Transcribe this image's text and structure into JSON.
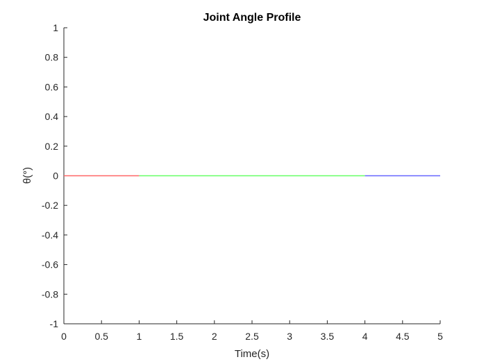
{
  "chart_data": {
    "type": "line",
    "title": "Joint Angle Profile",
    "xlabel": "Time(s)",
    "ylabel": "θ(°)",
    "xlim": [
      0,
      5
    ],
    "ylim": [
      -1,
      1
    ],
    "xticks": [
      0,
      0.5,
      1,
      1.5,
      2,
      2.5,
      3,
      3.5,
      4,
      4.5,
      5
    ],
    "yticks": [
      -1,
      -0.8,
      -0.6,
      -0.4,
      -0.2,
      0,
      0.2,
      0.4,
      0.6,
      0.8,
      1
    ],
    "grid": false,
    "series": [
      {
        "color": "#ff6666",
        "x": [
          0,
          1
        ],
        "y": [
          0,
          0
        ]
      },
      {
        "color": "#66ff66",
        "x": [
          1,
          4
        ],
        "y": [
          0,
          0
        ]
      },
      {
        "color": "#6666ff",
        "x": [
          4,
          5
        ],
        "y": [
          0,
          0
        ]
      }
    ]
  }
}
